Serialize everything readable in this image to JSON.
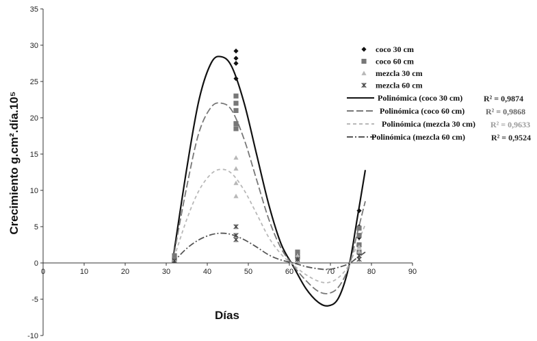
{
  "chart_data": {
    "type": "scatter",
    "xlabel": "Días",
    "ylabel": "Crecimiento g.cm².día.10⁵",
    "xlim": [
      0,
      90
    ],
    "ylim": [
      -10,
      35
    ],
    "x_ticks": [
      "0",
      "10",
      "20",
      "30",
      "40",
      "50",
      "60",
      "70",
      "80",
      "90"
    ],
    "y_ticks": [
      "-10",
      "-5",
      "0",
      "5",
      "10",
      "15",
      "20",
      "25",
      "30",
      "35"
    ],
    "grid": false,
    "legend_position": "top-right",
    "series": [
      {
        "name": "coco 30 cm",
        "marker": "diamond",
        "color": "#111111",
        "points": [
          [
            32,
            0.3
          ],
          [
            32,
            0.7
          ],
          [
            47,
            29.2
          ],
          [
            47,
            28.2
          ],
          [
            47,
            27.5
          ],
          [
            47,
            25.4
          ],
          [
            62,
            0.5
          ],
          [
            62,
            1.1
          ],
          [
            77,
            7.2
          ],
          [
            77,
            5.0
          ],
          [
            77,
            3.5
          ]
        ]
      },
      {
        "name": "coco 60 cm",
        "marker": "square",
        "color": "#777777",
        "points": [
          [
            32,
            0.5
          ],
          [
            32,
            1.0
          ],
          [
            47,
            23.0
          ],
          [
            47,
            22.0
          ],
          [
            47,
            21.0
          ],
          [
            47,
            19.2
          ],
          [
            47,
            18.5
          ],
          [
            62,
            1.5
          ],
          [
            62,
            0.8
          ],
          [
            77,
            4.8
          ],
          [
            77,
            3.8
          ],
          [
            77,
            2.5
          ],
          [
            77,
            1.5
          ]
        ]
      },
      {
        "name": "mezcla 30 cm",
        "marker": "triangle",
        "color": "#b8b8b8",
        "points": [
          [
            32,
            0.4
          ],
          [
            47,
            14.5
          ],
          [
            47,
            13.0
          ],
          [
            47,
            11.0
          ],
          [
            47,
            9.2
          ],
          [
            62,
            1.0
          ],
          [
            62,
            0.3
          ],
          [
            77,
            2.2
          ],
          [
            77,
            1.5
          ]
        ]
      },
      {
        "name": "mezcla 60 cm",
        "marker": "star",
        "color": "#444444",
        "points": [
          [
            32,
            0.3
          ],
          [
            47,
            5.0
          ],
          [
            47,
            3.8
          ],
          [
            47,
            3.2
          ],
          [
            62,
            0.5
          ],
          [
            77,
            1.0
          ],
          [
            77,
            0.5
          ]
        ]
      }
    ],
    "fits": [
      {
        "name": "Polinómica (coco 30 cm)",
        "r2_label": "R² = 0,9874",
        "style": "solid",
        "color": "#111111",
        "x": [
          31.5,
          35,
          38,
          41,
          43.5,
          46,
          49,
          52,
          55,
          58,
          61,
          64,
          67,
          69.5,
          72,
          74.5,
          76.5,
          78.5
        ],
        "y": [
          0,
          13,
          22.5,
          27.6,
          28.4,
          27.0,
          22.0,
          15.0,
          8.0,
          2.6,
          -0.5,
          -3.5,
          -5.4,
          -5.9,
          -4.8,
          -0.5,
          6.0,
          12.8
        ]
      },
      {
        "name": "Polinómica (coco 60 cm)",
        "r2_label": "R² = 0,9868",
        "style": "longdash",
        "color": "#777777",
        "x": [
          31.5,
          35,
          38,
          41,
          43.5,
          46,
          49,
          52,
          55,
          58,
          61,
          64,
          67,
          69.5,
          72,
          74.5,
          76.5,
          78.5
        ],
        "y": [
          0,
          10.5,
          18.0,
          21.5,
          22.0,
          21.0,
          17.0,
          11.5,
          6.0,
          2.0,
          -0.4,
          -2.4,
          -3.9,
          -4.2,
          -3.3,
          -0.5,
          4.0,
          8.5
        ]
      },
      {
        "name": "Polinómica (mezcla 30 cm)",
        "r2_label": "R² = 0,9633",
        "style": "shortdash",
        "color": "#b8b8b8",
        "x": [
          31.5,
          35,
          38,
          41,
          43.5,
          46,
          49,
          52,
          55,
          58,
          61,
          64,
          67,
          69.5,
          72,
          74.5,
          76.5,
          78.5
        ],
        "y": [
          0,
          6.0,
          10.0,
          12.3,
          12.9,
          12.3,
          10.0,
          6.8,
          3.5,
          1.2,
          -0.3,
          -1.6,
          -2.5,
          -2.7,
          -2.0,
          -0.3,
          2.5,
          5.3
        ]
      },
      {
        "name": "Polinómica (mezcla 60 cm)",
        "r2_label": "R² = 0,9524",
        "style": "dashdot",
        "color": "#555555",
        "x": [
          31.5,
          35,
          38,
          41,
          43.5,
          46,
          49,
          52,
          55,
          58,
          61,
          64,
          67,
          69.5,
          72,
          74.5,
          76.5,
          78.5
        ],
        "y": [
          0,
          2.0,
          3.2,
          3.9,
          4.1,
          3.9,
          3.2,
          2.2,
          1.1,
          0.4,
          0.0,
          -0.5,
          -0.8,
          -0.9,
          -0.6,
          -0.1,
          0.7,
          1.5
        ]
      }
    ]
  }
}
